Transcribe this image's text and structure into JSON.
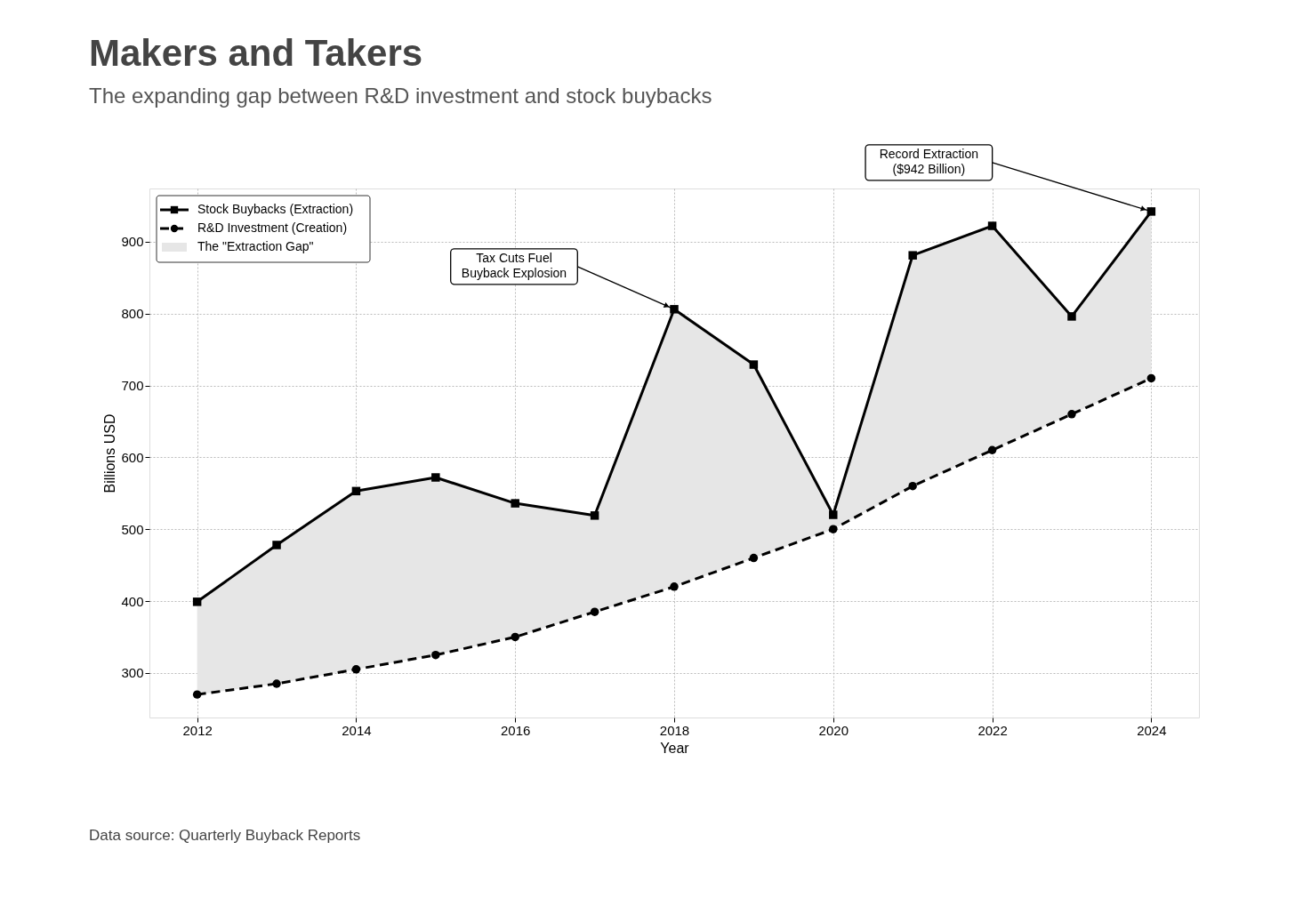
{
  "chart_data": {
    "type": "line",
    "title": "Makers and Takers",
    "subtitle": "The expanding gap between R&D investment and stock buybacks",
    "xlabel": "Year",
    "ylabel": "Billions USD",
    "x": [
      2012,
      2013,
      2014,
      2015,
      2016,
      2017,
      2018,
      2019,
      2020,
      2021,
      2022,
      2023,
      2024
    ],
    "series": [
      {
        "name": "The \"Extraction Gap\"",
        "type": "area",
        "color": "#e6e6e6",
        "values": [
          null,
          null,
          null,
          null,
          null,
          null,
          null,
          null,
          null,
          null,
          null,
          null,
          null
        ],
        "lower": [
          270,
          285,
          305,
          325,
          350,
          385,
          420,
          460,
          500,
          560,
          610,
          660,
          710
        ],
        "upper": [
          399,
          478,
          553,
          572,
          536,
          519,
          806,
          729,
          520,
          881,
          922,
          796,
          942
        ]
      },
      {
        "name": "Stock Buybacks (Extraction)",
        "color": "#000000",
        "marker": "square",
        "line_style": "solid",
        "values": [
          399,
          478,
          553,
          572,
          536,
          519,
          806,
          729,
          520,
          881,
          922,
          796,
          942
        ]
      },
      {
        "name": "R&D Investment (Creation)",
        "color": "#000000",
        "marker": "circle",
        "line_style": "dashed",
        "values": [
          270,
          285,
          305,
          325,
          350,
          385,
          420,
          460,
          500,
          560,
          610,
          660,
          710
        ]
      }
    ],
    "xlim": [
      2011.4,
      2024.6
    ],
    "ylim": [
      238,
      974
    ],
    "xticks": [
      2012,
      2014,
      2016,
      2018,
      2020,
      2022,
      2024
    ],
    "yticks": [
      300,
      400,
      500,
      600,
      700,
      800,
      900
    ],
    "grid": true,
    "legend": "top left",
    "annotations": [
      {
        "text": "Tax Cuts Fuel\nBuyback Explosion",
        "x": 2018,
        "y": 806
      },
      {
        "text": "Record Extraction\n($942 Billion)",
        "x": 2024,
        "y": 942
      },
      "Data source: Quarterly Buyback Reports"
    ]
  }
}
